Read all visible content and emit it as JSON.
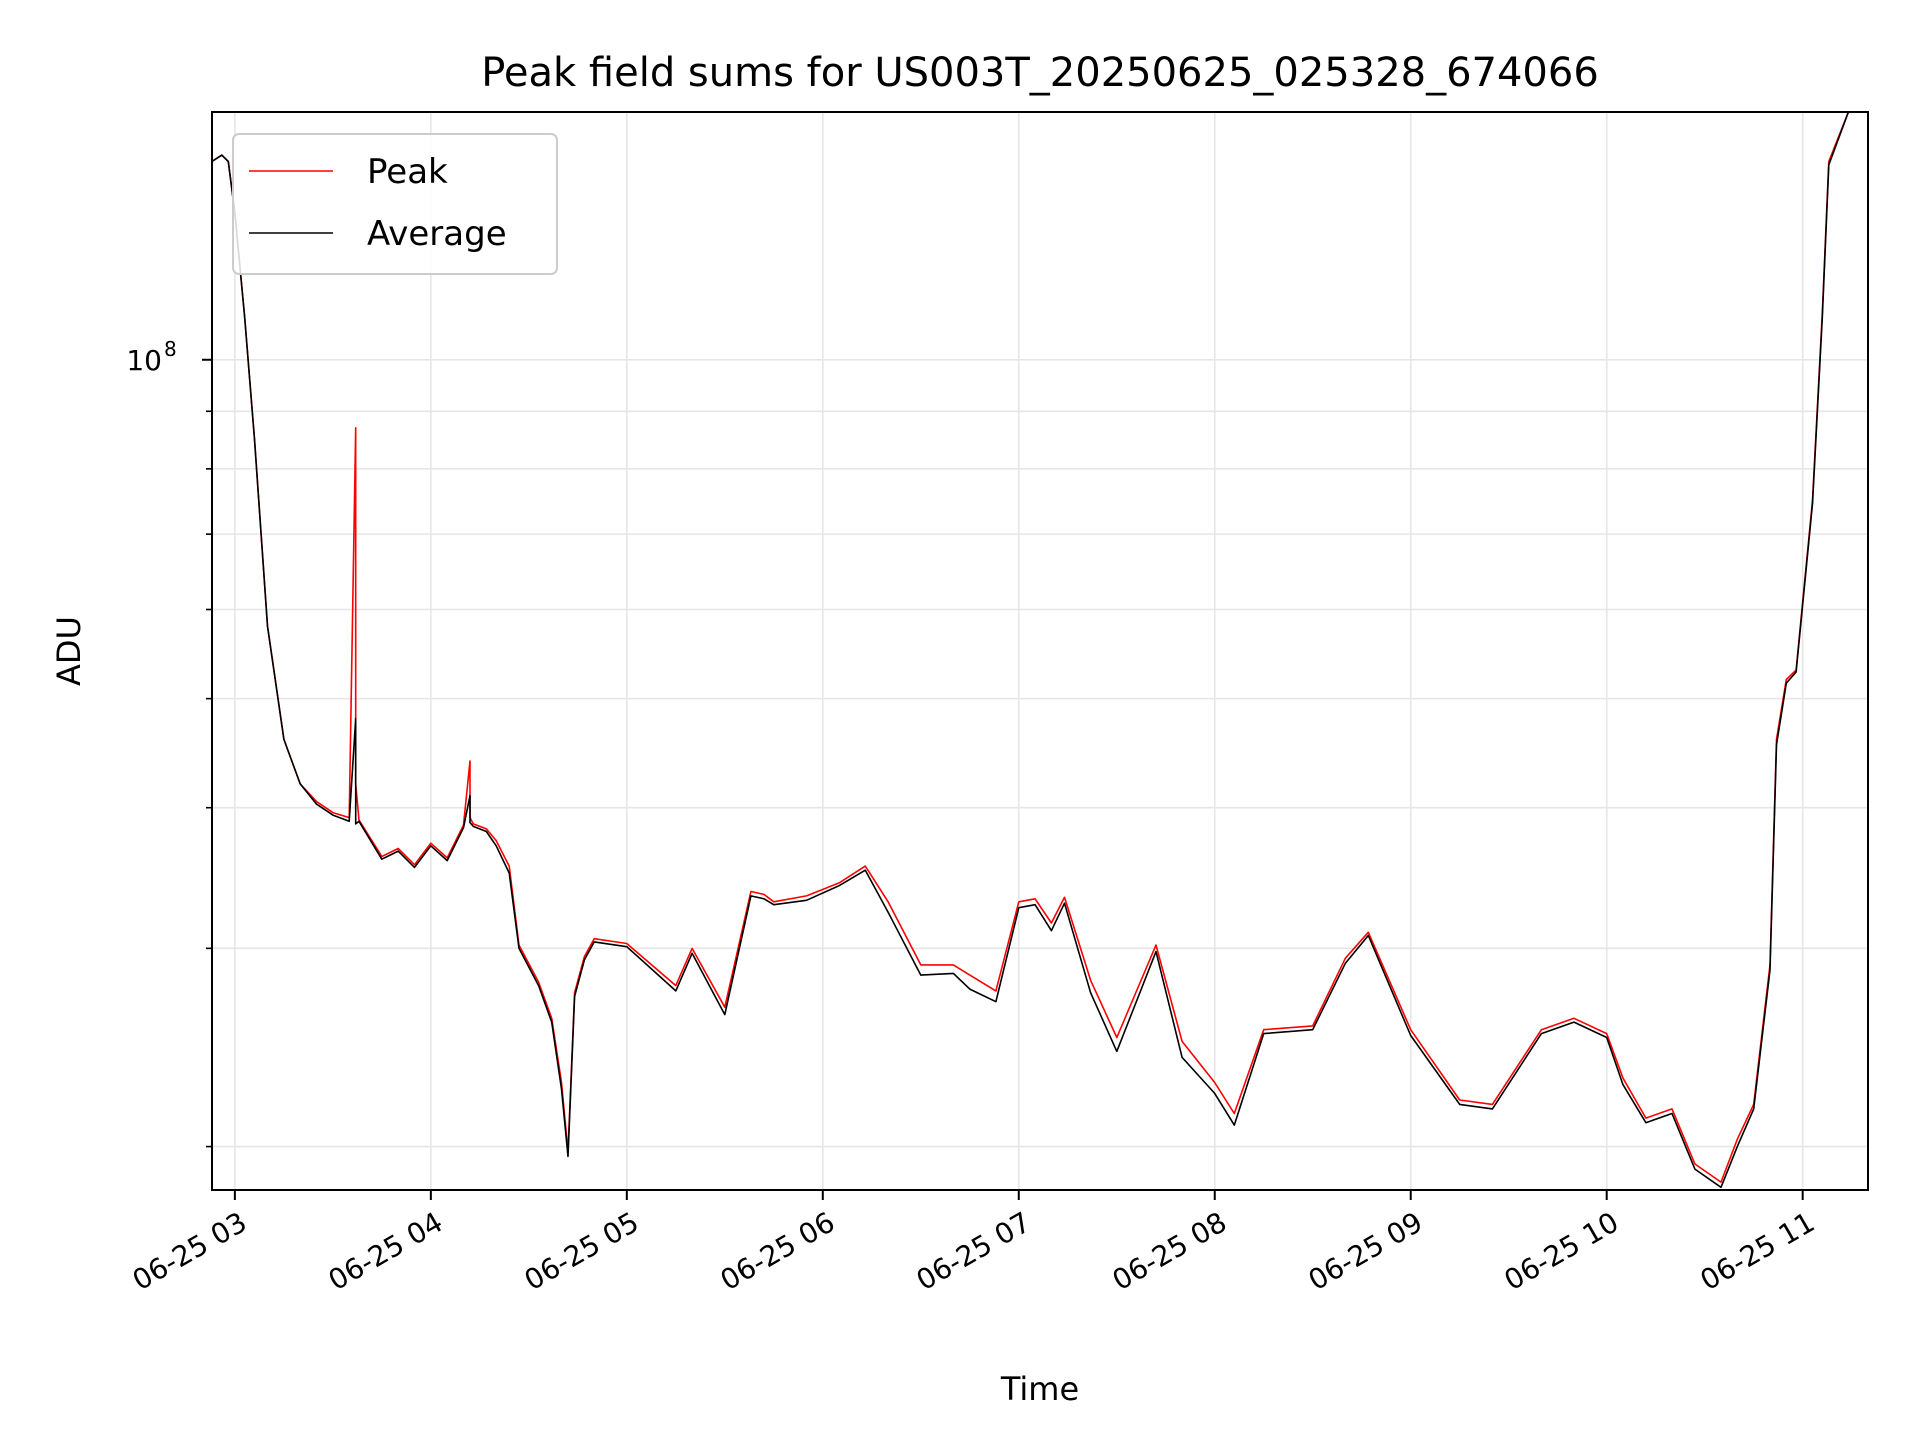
{
  "chart_data": {
    "type": "line",
    "title": "Peak field sums for US003T_20250625_025328_674066",
    "xlabel": "Time",
    "ylabel": "ADU",
    "yscale": "log",
    "ylim": [
      18300000,
      166000000
    ],
    "xlim": [
      "2025-06-25 02:53",
      "2025-06-25 11:20"
    ],
    "x_ticks": [
      {
        "value": "2025-06-25 03:00",
        "label": "06-25 03"
      },
      {
        "value": "2025-06-25 04:00",
        "label": "06-25 04"
      },
      {
        "value": "2025-06-25 05:00",
        "label": "06-25 05"
      },
      {
        "value": "2025-06-25 06:00",
        "label": "06-25 06"
      },
      {
        "value": "2025-06-25 07:00",
        "label": "06-25 07"
      },
      {
        "value": "2025-06-25 08:00",
        "label": "06-25 08"
      },
      {
        "value": "2025-06-25 09:00",
        "label": "06-25 09"
      },
      {
        "value": "2025-06-25 10:00",
        "label": "06-25 10"
      },
      {
        "value": "2025-06-25 11:00",
        "label": "06-25 11"
      }
    ],
    "y_ticks": [
      {
        "value": 100000000,
        "base": "10",
        "exp": "8"
      }
    ],
    "grid": true,
    "legend": "upper-left",
    "series": [
      {
        "name": "Peak",
        "color": "#ff0000",
        "x": [
          "2025-06-25 02:53",
          "2025-06-25 02:56",
          "2025-06-25 02:58",
          "2025-06-25 03:00",
          "2025-06-25 03:03",
          "2025-06-25 03:06",
          "2025-06-25 03:10",
          "2025-06-25 03:15",
          "2025-06-25 03:20",
          "2025-06-25 03:25",
          "2025-06-25 03:30",
          "2025-06-25 03:35",
          "2025-06-25 03:37",
          "2025-06-25 03:37",
          "2025-06-25 03:38",
          "2025-06-25 03:45",
          "2025-06-25 03:50",
          "2025-06-25 03:55",
          "2025-06-25 04:00",
          "2025-06-25 04:05",
          "2025-06-25 04:10",
          "2025-06-25 04:12",
          "2025-06-25 04:12",
          "2025-06-25 04:13",
          "2025-06-25 04:17",
          "2025-06-25 04:20",
          "2025-06-25 04:24",
          "2025-06-25 04:27",
          "2025-06-25 04:33",
          "2025-06-25 04:37",
          "2025-06-25 04:40",
          "2025-06-25 04:42",
          "2025-06-25 04:44",
          "2025-06-25 04:47",
          "2025-06-25 04:50",
          "2025-06-25 05:00",
          "2025-06-25 05:15",
          "2025-06-25 05:20",
          "2025-06-25 05:30",
          "2025-06-25 05:38",
          "2025-06-25 05:42",
          "2025-06-25 05:45",
          "2025-06-25 05:55",
          "2025-06-25 06:05",
          "2025-06-25 06:13",
          "2025-06-25 06:20",
          "2025-06-25 06:30",
          "2025-06-25 06:40",
          "2025-06-25 06:45",
          "2025-06-25 06:53",
          "2025-06-25 07:00",
          "2025-06-25 07:05",
          "2025-06-25 07:10",
          "2025-06-25 07:14",
          "2025-06-25 07:22",
          "2025-06-25 07:30",
          "2025-06-25 07:42",
          "2025-06-25 07:50",
          "2025-06-25 08:00",
          "2025-06-25 08:06",
          "2025-06-25 08:15",
          "2025-06-25 08:30",
          "2025-06-25 08:40",
          "2025-06-25 08:47",
          "2025-06-25 09:00",
          "2025-06-25 09:15",
          "2025-06-25 09:25",
          "2025-06-25 09:40",
          "2025-06-25 09:50",
          "2025-06-25 10:00",
          "2025-06-25 10:05",
          "2025-06-25 10:12",
          "2025-06-25 10:20",
          "2025-06-25 10:27",
          "2025-06-25 10:35",
          "2025-06-25 10:40",
          "2025-06-25 10:45",
          "2025-06-25 10:50",
          "2025-06-25 10:52",
          "2025-06-25 10:55",
          "2025-06-25 10:58",
          "2025-06-25 11:03",
          "2025-06-25 11:06",
          "2025-06-25 11:08",
          "2025-06-25 11:14"
        ],
        "y": [
          150000000,
          152000000,
          150000000,
          135000000,
          109000000,
          85000000,
          58000000,
          46000000,
          42000000,
          40500000,
          39600000,
          39200000,
          87000000,
          42000000,
          39000000,
          36200000,
          36800000,
          35600000,
          37200000,
          36100000,
          38600000,
          44000000,
          39200000,
          38700000,
          38300000,
          37400000,
          35500000,
          30200000,
          28000000,
          26000000,
          22800000,
          19800000,
          27400000,
          29500000,
          30600000,
          30300000,
          27800000,
          30000000,
          26600000,
          33700000,
          33500000,
          33000000,
          33400000,
          34300000,
          35500000,
          33000000,
          29000000,
          29000000,
          28400000,
          27500000,
          33000000,
          33200000,
          31600000,
          33300000,
          28100000,
          25000000,
          30200000,
          24800000,
          22800000,
          21400000,
          25400000,
          25600000,
          29400000,
          31000000,
          25400000,
          22000000,
          21800000,
          25400000,
          26000000,
          25200000,
          23000000,
          21200000,
          21600000,
          19300000,
          18600000,
          20300000,
          21800000,
          29000000,
          46000000,
          52000000,
          53000000,
          75000000,
          110000000,
          150000000,
          166000000
        ]
      },
      {
        "name": "Average",
        "color": "#000000",
        "x": [
          "2025-06-25 02:53",
          "2025-06-25 02:56",
          "2025-06-25 02:58",
          "2025-06-25 03:00",
          "2025-06-25 03:03",
          "2025-06-25 03:06",
          "2025-06-25 03:10",
          "2025-06-25 03:15",
          "2025-06-25 03:20",
          "2025-06-25 03:25",
          "2025-06-25 03:30",
          "2025-06-25 03:35",
          "2025-06-25 03:37",
          "2025-06-25 03:37",
          "2025-06-25 03:38",
          "2025-06-25 03:45",
          "2025-06-25 03:50",
          "2025-06-25 03:55",
          "2025-06-25 04:00",
          "2025-06-25 04:05",
          "2025-06-25 04:10",
          "2025-06-25 04:12",
          "2025-06-25 04:12",
          "2025-06-25 04:13",
          "2025-06-25 04:17",
          "2025-06-25 04:20",
          "2025-06-25 04:24",
          "2025-06-25 04:27",
          "2025-06-25 04:33",
          "2025-06-25 04:37",
          "2025-06-25 04:40",
          "2025-06-25 04:42",
          "2025-06-25 04:44",
          "2025-06-25 04:47",
          "2025-06-25 04:50",
          "2025-06-25 05:00",
          "2025-06-25 05:15",
          "2025-06-25 05:20",
          "2025-06-25 05:30",
          "2025-06-25 05:38",
          "2025-06-25 05:42",
          "2025-06-25 05:45",
          "2025-06-25 05:55",
          "2025-06-25 06:05",
          "2025-06-25 06:13",
          "2025-06-25 06:20",
          "2025-06-25 06:30",
          "2025-06-25 06:40",
          "2025-06-25 06:45",
          "2025-06-25 06:53",
          "2025-06-25 07:00",
          "2025-06-25 07:05",
          "2025-06-25 07:10",
          "2025-06-25 07:14",
          "2025-06-25 07:22",
          "2025-06-25 07:30",
          "2025-06-25 07:42",
          "2025-06-25 07:50",
          "2025-06-25 08:00",
          "2025-06-25 08:06",
          "2025-06-25 08:15",
          "2025-06-25 08:30",
          "2025-06-25 08:40",
          "2025-06-25 08:47",
          "2025-06-25 09:00",
          "2025-06-25 09:15",
          "2025-06-25 09:25",
          "2025-06-25 09:40",
          "2025-06-25 09:50",
          "2025-06-25 10:00",
          "2025-06-25 10:05",
          "2025-06-25 10:12",
          "2025-06-25 10:20",
          "2025-06-25 10:27",
          "2025-06-25 10:35",
          "2025-06-25 10:40",
          "2025-06-25 10:45",
          "2025-06-25 10:50",
          "2025-06-25 10:52",
          "2025-06-25 10:55",
          "2025-06-25 10:58",
          "2025-06-25 11:03",
          "2025-06-25 11:06",
          "2025-06-25 11:08",
          "2025-06-25 11:14"
        ],
        "y": [
          150000000,
          152000000,
          150000000,
          135000000,
          109000000,
          85000000,
          58000000,
          46000000,
          42000000,
          40300000,
          39400000,
          38900000,
          48000000,
          38700000,
          38900000,
          36000000,
          36600000,
          35400000,
          37000000,
          35900000,
          38400000,
          41000000,
          38800000,
          38500000,
          38100000,
          37000000,
          35000000,
          30000000,
          27800000,
          25800000,
          22500000,
          19600000,
          27200000,
          29300000,
          30400000,
          30100000,
          27500000,
          29700000,
          26200000,
          33400000,
          33200000,
          32800000,
          33100000,
          34100000,
          35200000,
          32300000,
          28400000,
          28500000,
          27600000,
          26900000,
          32600000,
          32800000,
          31100000,
          32900000,
          27400000,
          24300000,
          29800000,
          24000000,
          22300000,
          20900000,
          25200000,
          25400000,
          29100000,
          30800000,
          25100000,
          21800000,
          21600000,
          25200000,
          25800000,
          25000000,
          22700000,
          21000000,
          21400000,
          19100000,
          18400000,
          20000000,
          21600000,
          28700000,
          45500000,
          51600000,
          52800000,
          74500000,
          109000000,
          149000000,
          166000000
        ]
      }
    ]
  }
}
